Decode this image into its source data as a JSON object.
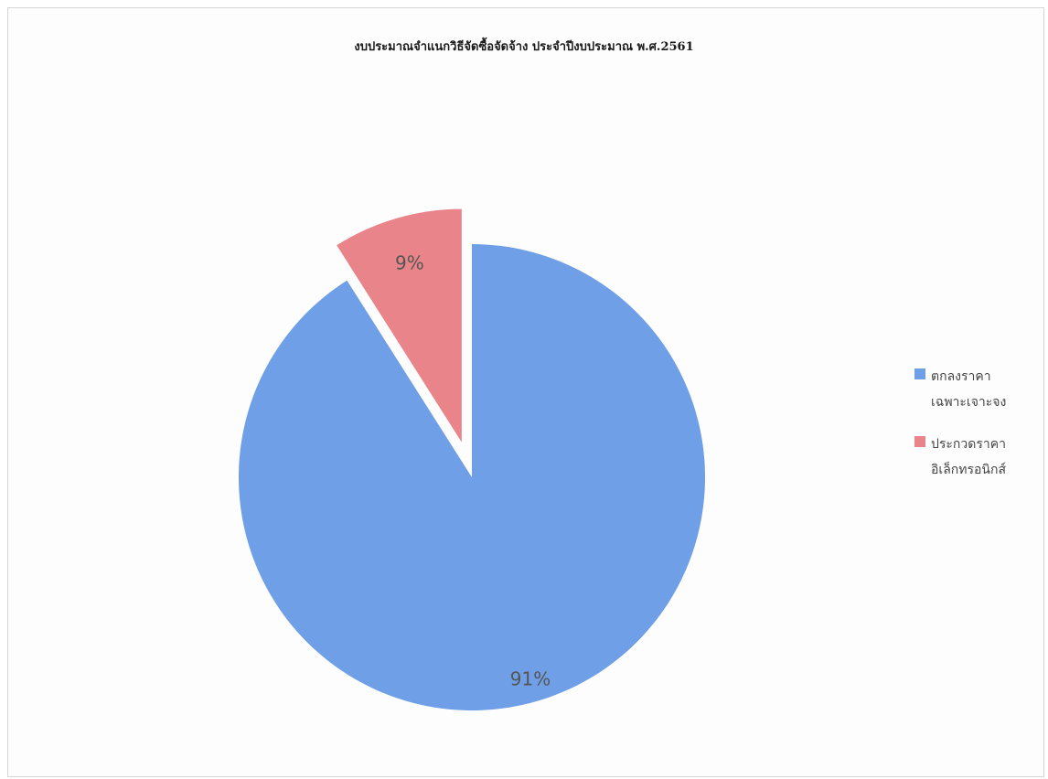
{
  "chart_data": {
    "type": "pie",
    "title": "งบประมาณจำแนกวิธีจัดซื้อจัดจ้าง ประจำปีงบประมาณ พ.ศ.2561",
    "slices": [
      {
        "label_lines": [
          "ตกลงราคา",
          "เฉพาะเจาะจง"
        ],
        "value": 91,
        "display": "91%",
        "color": "#6f9fe6"
      },
      {
        "label_lines": [
          "ประกวดราคา",
          "อิเล็กทรอนิกส์"
        ],
        "value": 9,
        "display": "9%",
        "color": "#e8848a",
        "exploded": true
      }
    ],
    "legend_position": "right",
    "start_angle": "12 o'clock, clockwise"
  }
}
